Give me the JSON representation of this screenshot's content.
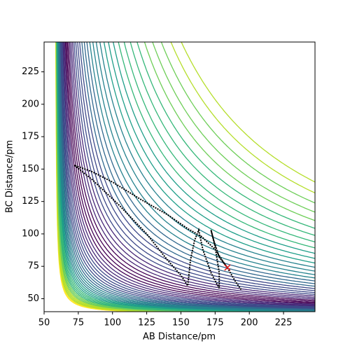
{
  "chart_data": {
    "type": "contour-trajectory",
    "x_label": "AB Distance/pm",
    "y_label": "BC Distance/pm",
    "xlim": [
      50,
      248
    ],
    "ylim": [
      40,
      248
    ],
    "xticks": [
      50,
      75,
      100,
      125,
      150,
      175,
      200,
      225
    ],
    "yticks": [
      50,
      75,
      100,
      125,
      150,
      175,
      200,
      225
    ],
    "colormap": "viridis",
    "trajectory": {
      "color": "#000000",
      "start_color": "#e41a1c",
      "x": [
        184,
        178,
        174,
        172,
        175,
        178,
        178,
        172,
        166,
        163,
        160,
        157,
        155,
        150,
        140,
        125,
        105,
        85,
        72,
        85,
        100,
        120,
        140,
        155,
        165,
        175,
        185,
        190,
        194
      ],
      "y": [
        74,
        82,
        95,
        103,
        90,
        70,
        58,
        70,
        88,
        103,
        95,
        80,
        60,
        68,
        80,
        100,
        122,
        142,
        153,
        148,
        140,
        127,
        115,
        104,
        98,
        88,
        72,
        63,
        57
      ]
    }
  }
}
